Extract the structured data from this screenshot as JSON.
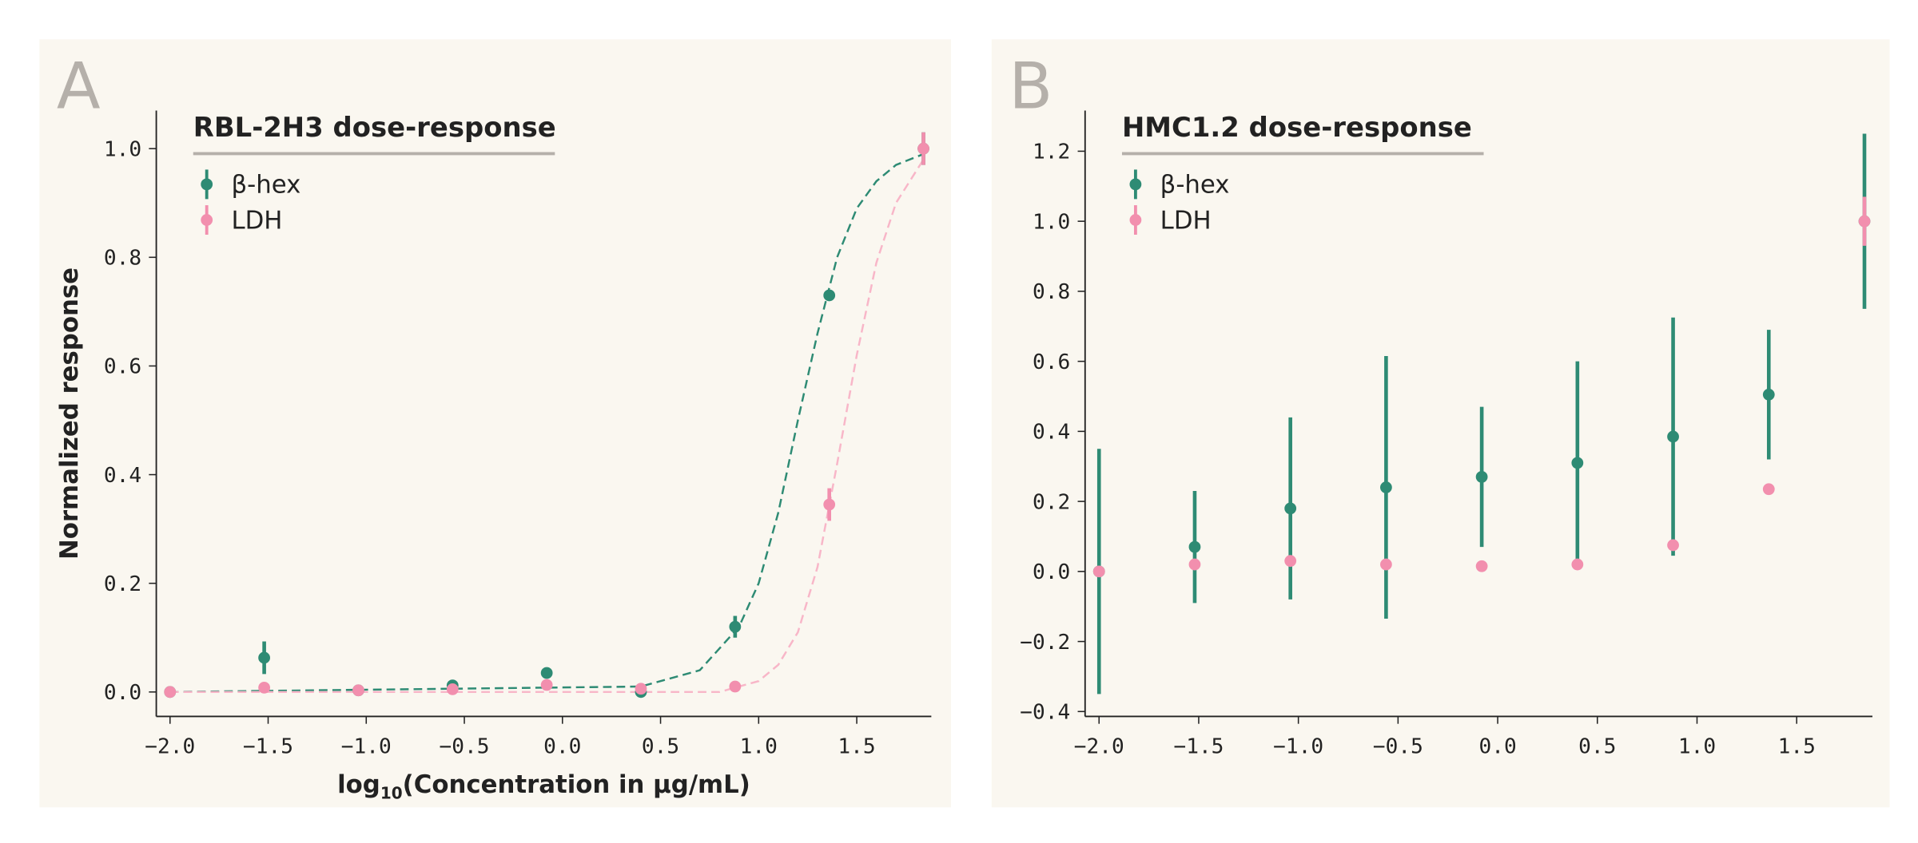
{
  "chart_data": [
    {
      "type": "scatter",
      "panel_label": "A",
      "title": "RBL-2H3 dose-response",
      "ylabel": "Normalized response",
      "xlabel": {
        "base": "log",
        "sub": "10",
        "rest": "(Concentration in μg/mL)"
      },
      "xlim": [
        -2.07,
        1.88
      ],
      "ylim": [
        -0.045,
        1.07
      ],
      "xticks": [
        {
          "value": -2,
          "label": "−2.0"
        },
        {
          "value": -1.5,
          "label": "−1.5"
        },
        {
          "value": -1,
          "label": "−1.0"
        },
        {
          "value": -0.5,
          "label": "−0.5"
        },
        {
          "value": 0,
          "label": "0.0"
        },
        {
          "value": 0.5,
          "label": "0.5"
        },
        {
          "value": 1,
          "label": "1.0"
        },
        {
          "value": 1.5,
          "label": "1.5"
        }
      ],
      "yticks": [
        {
          "value": 0,
          "label": "0.0"
        },
        {
          "value": 0.2,
          "label": "0.2"
        },
        {
          "value": 0.4,
          "label": "0.4"
        },
        {
          "value": 0.6,
          "label": "0.6"
        },
        {
          "value": 0.8,
          "label": "0.8"
        },
        {
          "value": 1,
          "label": "1.0"
        }
      ],
      "x": [
        -2.0,
        -1.52,
        -1.04,
        -0.56,
        -0.08,
        0.4,
        0.88,
        1.36,
        1.84
      ],
      "series": [
        {
          "name": "β-hex",
          "color": "#2e8b74",
          "values": [
            0,
            0.063,
            0.003,
            0.012,
            0.035,
            0.0,
            0.12,
            0.73,
            1.0
          ],
          "errors": [
            0,
            0.03,
            0.005,
            0.005,
            0.005,
            0.005,
            0.02,
            0.01,
            0.03
          ]
        },
        {
          "name": "LDH",
          "color": "#f28fae",
          "values": [
            0,
            0.008,
            0.003,
            0.005,
            0.013,
            0.006,
            0.01,
            0.345,
            1.0
          ],
          "errors": [
            0,
            0.005,
            0.003,
            0.003,
            0.005,
            0.003,
            0.005,
            0.03,
            0.03
          ]
        }
      ],
      "fits": [
        {
          "color": "#2e8b74",
          "x": [
            -2.0,
            0.4,
            0.7,
            0.9,
            1.0,
            1.1,
            1.2,
            1.3,
            1.4,
            1.5,
            1.6,
            1.7,
            1.84
          ],
          "y": [
            0,
            0.01,
            0.04,
            0.12,
            0.2,
            0.33,
            0.5,
            0.66,
            0.8,
            0.89,
            0.94,
            0.97,
            0.99
          ]
        },
        {
          "color": "#f8b6c8",
          "x": [
            -2.0,
            0.8,
            1.0,
            1.1,
            1.2,
            1.3,
            1.4,
            1.5,
            1.6,
            1.7,
            1.84
          ],
          "y": [
            0,
            0.0,
            0.02,
            0.05,
            0.11,
            0.23,
            0.42,
            0.62,
            0.79,
            0.9,
            0.98
          ]
        }
      ]
    },
    {
      "type": "scatter",
      "panel_label": "B",
      "title": "HMC1.2 dose-response",
      "xlim": [
        -2.07,
        1.88
      ],
      "ylim": [
        -0.414,
        1.316
      ],
      "xticks": [
        {
          "value": -2,
          "label": "−2.0"
        },
        {
          "value": -1.5,
          "label": "−1.5"
        },
        {
          "value": -1,
          "label": "−1.0"
        },
        {
          "value": -0.5,
          "label": "−0.5"
        },
        {
          "value": 0,
          "label": "0.0"
        },
        {
          "value": 0.5,
          "label": "0.5"
        },
        {
          "value": 1,
          "label": "1.0"
        },
        {
          "value": 1.5,
          "label": "1.5"
        }
      ],
      "yticks": [
        {
          "value": -0.4,
          "label": "−0.4"
        },
        {
          "value": -0.2,
          "label": "−0.2"
        },
        {
          "value": 0,
          "label": "0.0"
        },
        {
          "value": 0.2,
          "label": "0.2"
        },
        {
          "value": 0.4,
          "label": "0.4"
        },
        {
          "value": 0.6,
          "label": "0.6"
        },
        {
          "value": 0.8,
          "label": "0.8"
        },
        {
          "value": 1,
          "label": "1.0"
        },
        {
          "value": 1.2,
          "label": "1.2"
        }
      ],
      "x": [
        -2.0,
        -1.52,
        -1.04,
        -0.56,
        -0.08,
        0.4,
        0.88,
        1.36,
        1.84
      ],
      "series": [
        {
          "name": "β-hex",
          "color": "#2e8b74",
          "values": [
            0.0,
            0.07,
            0.18,
            0.24,
            0.27,
            0.31,
            0.385,
            0.505,
            1.0
          ],
          "errors": [
            0.35,
            0.16,
            0.26,
            0.375,
            0.2,
            0.29,
            0.34,
            0.185,
            0.25
          ]
        },
        {
          "name": "LDH",
          "color": "#f28fae",
          "values": [
            0.0,
            0.02,
            0.03,
            0.02,
            0.015,
            0.02,
            0.075,
            0.235,
            1.0
          ],
          "errors": [
            0.005,
            0.005,
            0.005,
            0.005,
            0.005,
            0.005,
            0.005,
            0.005,
            0.07
          ]
        }
      ]
    }
  ]
}
